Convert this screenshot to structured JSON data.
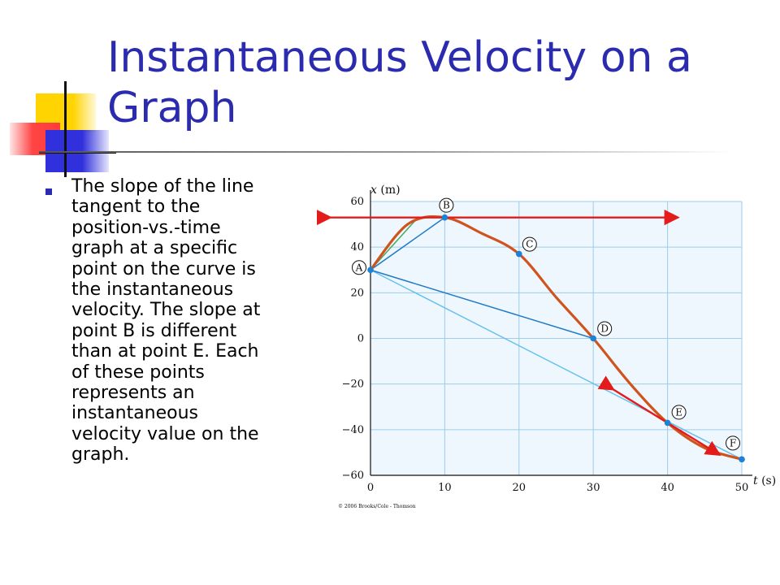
{
  "slide": {
    "title": "Instantaneous Velocity on a Graph",
    "bullet_text": "The slope of the line tangent to the position-vs.-time graph at a specific point on the curve is the instantaneous velocity.  The slope at point B is different than at point E.  Each of these points represents an instantaneous velocity value on the graph.",
    "body_lines": [
      "The slope of the line",
      "tangent to the",
      "position-vs.-time",
      "graph at a specific",
      "point on the curve is",
      "the instantaneous",
      "velocity.  The slope at",
      "point B is different",
      "than at point E.  Each",
      "of these points",
      "represents an",
      "instantaneous",
      "velocity value on the",
      "graph."
    ]
  },
  "colors": {
    "title": "#2b2bb0",
    "body_text": "#000000",
    "bullet": "#2b2bb0",
    "curve": "#d0531d",
    "tangent_red": "#e31b1b",
    "line_blue": "#1f7ac7",
    "line_lightblue": "#67c0ee",
    "tangent_green": "#49a85a",
    "grid": "#9fcce8",
    "plot_bg": "#eef7fd",
    "point": "#1b82d6"
  },
  "chart_data": {
    "type": "line",
    "xlabel": "t (s)",
    "ylabel": "x (m)",
    "xlim": [
      0,
      50
    ],
    "ylim": [
      -60,
      60
    ],
    "x_ticks": [
      0,
      10,
      20,
      30,
      40,
      50
    ],
    "y_ticks": [
      60,
      40,
      20,
      0,
      -20,
      -40,
      -60
    ],
    "grid": true,
    "series": [
      {
        "x": [
          0,
          5,
          10,
          15,
          20,
          25,
          30,
          35,
          40,
          45,
          50
        ],
        "y": [
          30,
          50,
          53,
          46,
          37,
          18,
          0,
          -20,
          -37,
          -48,
          -53
        ]
      }
    ],
    "points": [
      {
        "label": "A",
        "x": 0,
        "y": 30
      },
      {
        "label": "B",
        "x": 10,
        "y": 53
      },
      {
        "label": "C",
        "x": 20,
        "y": 37
      },
      {
        "label": "D",
        "x": 30,
        "y": 0
      },
      {
        "label": "E",
        "x": 40,
        "y": -37
      },
      {
        "label": "F",
        "x": 50,
        "y": -53
      }
    ],
    "secant_lines": [
      {
        "from": "A",
        "to": "B"
      },
      {
        "from": "A",
        "to": "D"
      },
      {
        "from": "A",
        "to": "F"
      }
    ],
    "tangent_lines": [
      {
        "point": "A",
        "slope": 3.6
      },
      {
        "point": "B",
        "slope": 0
      },
      {
        "point": "E",
        "slope": -2.0
      }
    ],
    "copyright": "© 2006 Brooks/Cole - Thomson"
  }
}
